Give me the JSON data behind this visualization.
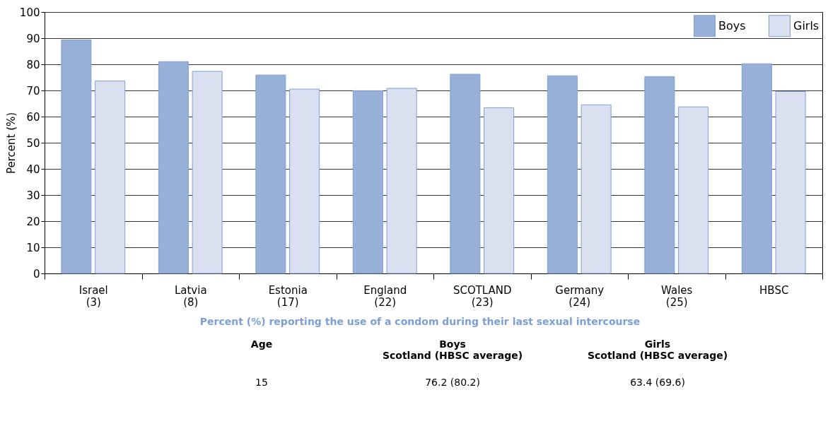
{
  "chart_data": {
    "type": "bar",
    "categories": [
      "Israel\n(3)",
      "Latvia\n(8)",
      "Estonia\n(17)",
      "England\n(22)",
      "SCOTLAND\n(23)",
      "Germany\n(24)",
      "Wales\n(25)",
      "HBSC"
    ],
    "series": [
      {
        "name": "Boys",
        "color": "#98b0d8",
        "values": [
          89.3,
          81.0,
          75.9,
          69.9,
          76.2,
          75.6,
          75.3,
          80.2
        ]
      },
      {
        "name": "Girls",
        "color": "#dbe0f0",
        "values": [
          73.6,
          77.3,
          70.5,
          70.8,
          63.4,
          64.5,
          63.7,
          69.6
        ]
      }
    ],
    "ylabel": "Percent (%)",
    "ylim": [
      0,
      100
    ],
    "yticks": [
      0,
      10,
      20,
      30,
      40,
      50,
      60,
      70,
      80,
      90,
      100
    ],
    "grid": "y",
    "legend": "top right",
    "annotations": [
      "Percent (%) reporting the use of a condom during their last sexual intercourse",
      "Age",
      "Boys\nScotland (HBSC average)",
      "Girls\nScotland (HBSC average)",
      "15",
      "76.2 (80.2)",
      "63.4 (69.6)"
    ]
  }
}
